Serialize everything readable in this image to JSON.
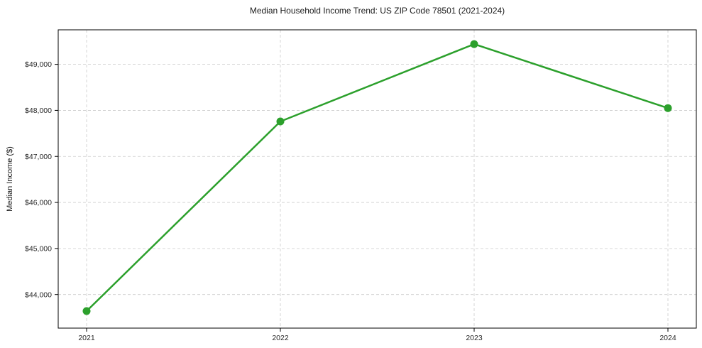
{
  "chart_data": {
    "type": "line",
    "title": "Median Household Income Trend: US ZIP Code 78501 (2021-2024)",
    "ylabel": "Median Income ($)",
    "xlabel": "",
    "x": [
      "2021",
      "2022",
      "2023",
      "2024"
    ],
    "series": [
      {
        "color": "#2ca02c",
        "marker": "circle",
        "line_width": 2.5,
        "marker_radius": 5.5,
        "values": [
          43640,
          47760,
          49440,
          48050
        ]
      }
    ],
    "xtick_labels": [
      "2021",
      "2022",
      "2023",
      "2024"
    ],
    "yticks": [
      44000,
      45000,
      46000,
      47000,
      48000,
      49000
    ],
    "ytick_labels": [
      "$44,000",
      "$45,000",
      "$46,000",
      "$47,000",
      "$48,000",
      "$49,000"
    ],
    "ylim": [
      43270,
      49750
    ],
    "grid": true,
    "grid_color": "#cccccc",
    "grid_style": "dashed",
    "axis_color": "#000000",
    "tick_label_color": "#262626",
    "background_color": "#ffffff",
    "legend": "none"
  }
}
